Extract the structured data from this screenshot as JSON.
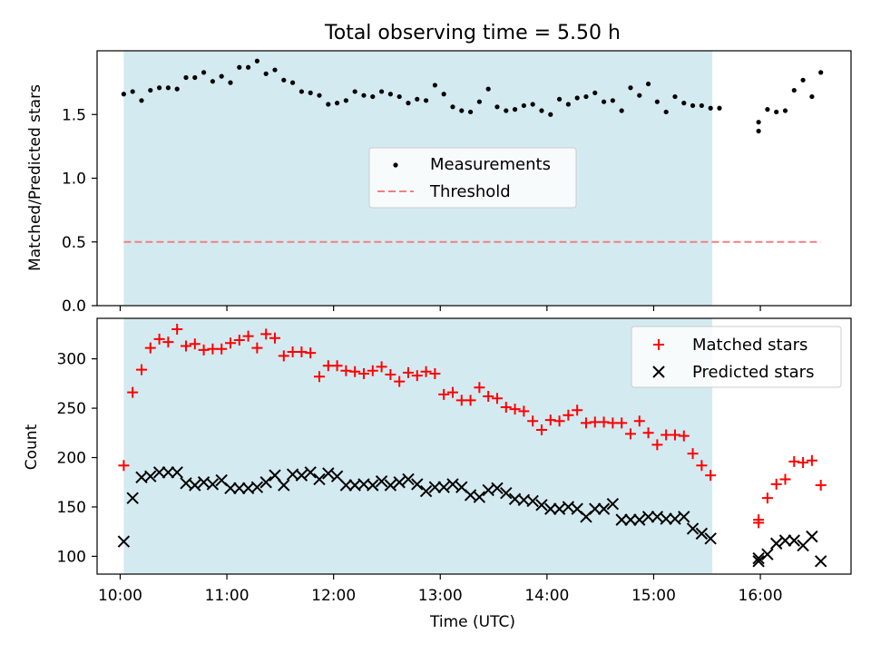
{
  "title": "Total observing time = 5.50 h",
  "x_tick_labels": [
    "10:00",
    "11:00",
    "12:00",
    "13:00",
    "14:00",
    "15:00",
    "16:00"
  ],
  "x_axis_label": "Time (UTC)",
  "chart_data": [
    {
      "type": "scatter",
      "ylabel": "Matched/Predicted stars",
      "xlim": [
        "09:47",
        "16:51"
      ],
      "ylim": [
        0,
        2.0
      ],
      "y_ticks": [
        "0.0",
        "0.5",
        "1.0",
        "1.5"
      ],
      "grid": false,
      "legend": "center",
      "shaded_span": {
        "start": "10:02",
        "end": "15:33",
        "color": "#d4eaf1"
      },
      "series": [
        {
          "name": "Measurements",
          "marker": "dot",
          "color": "#000000",
          "points": [
            [
              "10:02",
              1.66
            ],
            [
              "10:07",
              1.68
            ],
            [
              "10:12",
              1.61
            ],
            [
              "10:17",
              1.69
            ],
            [
              "10:22",
              1.71
            ],
            [
              "10:27",
              1.71
            ],
            [
              "10:32",
              1.7
            ],
            [
              "10:37",
              1.79
            ],
            [
              "10:42",
              1.79
            ],
            [
              "10:47",
              1.83
            ],
            [
              "10:52",
              1.76
            ],
            [
              "10:57",
              1.8
            ],
            [
              "11:02",
              1.75
            ],
            [
              "11:07",
              1.87
            ],
            [
              "11:12",
              1.87
            ],
            [
              "11:17",
              1.92
            ],
            [
              "11:22",
              1.82
            ],
            [
              "11:27",
              1.85
            ],
            [
              "11:32",
              1.77
            ],
            [
              "11:37",
              1.75
            ],
            [
              "11:42",
              1.68
            ],
            [
              "11:47",
              1.67
            ],
            [
              "11:52",
              1.65
            ],
            [
              "11:57",
              1.58
            ],
            [
              "12:02",
              1.59
            ],
            [
              "12:07",
              1.61
            ],
            [
              "12:12",
              1.68
            ],
            [
              "12:17",
              1.65
            ],
            [
              "12:22",
              1.64
            ],
            [
              "12:27",
              1.68
            ],
            [
              "12:32",
              1.66
            ],
            [
              "12:37",
              1.64
            ],
            [
              "12:42",
              1.59
            ],
            [
              "12:47",
              1.62
            ],
            [
              "12:52",
              1.61
            ],
            [
              "12:57",
              1.73
            ],
            [
              "13:02",
              1.66
            ],
            [
              "13:07",
              1.56
            ],
            [
              "13:12",
              1.53
            ],
            [
              "13:17",
              1.52
            ],
            [
              "13:22",
              1.6
            ],
            [
              "13:27",
              1.7
            ],
            [
              "13:32",
              1.56
            ],
            [
              "13:37",
              1.53
            ],
            [
              "13:42",
              1.54
            ],
            [
              "13:47",
              1.57
            ],
            [
              "13:52",
              1.58
            ],
            [
              "13:57",
              1.53
            ],
            [
              "14:02",
              1.5
            ],
            [
              "14:07",
              1.62
            ],
            [
              "14:12",
              1.58
            ],
            [
              "14:17",
              1.63
            ],
            [
              "14:22",
              1.64
            ],
            [
              "14:27",
              1.67
            ],
            [
              "14:32",
              1.6
            ],
            [
              "14:37",
              1.61
            ],
            [
              "14:42",
              1.53
            ],
            [
              "14:47",
              1.71
            ],
            [
              "14:52",
              1.65
            ],
            [
              "14:57",
              1.74
            ],
            [
              "15:02",
              1.6
            ],
            [
              "15:07",
              1.52
            ],
            [
              "15:12",
              1.64
            ],
            [
              "15:17",
              1.59
            ],
            [
              "15:22",
              1.57
            ],
            [
              "15:27",
              1.57
            ],
            [
              "15:32",
              1.55
            ],
            [
              "15:37",
              1.55
            ],
            [
              "15:59",
              1.44
            ],
            [
              "15:59",
              1.37
            ],
            [
              "16:04",
              1.54
            ],
            [
              "16:09",
              1.52
            ],
            [
              "16:14",
              1.53
            ],
            [
              "16:19",
              1.69
            ],
            [
              "16:24",
              1.77
            ],
            [
              "16:29",
              1.64
            ],
            [
              "16:34",
              1.83
            ]
          ]
        },
        {
          "name": "Threshold",
          "line_style": "dashed",
          "color": "#f08080",
          "points": [
            [
              "10:02",
              0.5
            ],
            [
              "16:34",
              0.5
            ]
          ]
        }
      ]
    },
    {
      "type": "scatter",
      "xlabel": "Time (UTC)",
      "ylabel": "Count",
      "xlim": [
        "09:47",
        "16:51"
      ],
      "ylim": [
        82,
        341
      ],
      "y_ticks": [
        "100",
        "150",
        "200",
        "250",
        "300"
      ],
      "grid": false,
      "legend": "top-right",
      "shaded_span": {
        "start": "10:02",
        "end": "15:33",
        "color": "#d4eaf1"
      },
      "series": [
        {
          "name": "Matched stars",
          "marker": "plus",
          "color": "#ff0000",
          "points": [
            [
              "10:02",
              192
            ],
            [
              "10:07",
              266
            ],
            [
              "10:12",
              289
            ],
            [
              "10:17",
              311
            ],
            [
              "10:22",
              320
            ],
            [
              "10:27",
              317
            ],
            [
              "10:32",
              330
            ],
            [
              "10:37",
              313
            ],
            [
              "10:42",
              315
            ],
            [
              "10:47",
              309
            ],
            [
              "10:52",
              310
            ],
            [
              "10:57",
              310
            ],
            [
              "11:02",
              316
            ],
            [
              "11:07",
              319
            ],
            [
              "11:12",
              323
            ],
            [
              "11:17",
              311
            ],
            [
              "11:22",
              325
            ],
            [
              "11:27",
              321
            ],
            [
              "11:32",
              303
            ],
            [
              "11:37",
              307
            ],
            [
              "11:42",
              307
            ],
            [
              "11:47",
              306
            ],
            [
              "11:52",
              282
            ],
            [
              "11:57",
              293
            ],
            [
              "12:02",
              293
            ],
            [
              "12:07",
              288
            ],
            [
              "12:12",
              287
            ],
            [
              "12:17",
              285
            ],
            [
              "12:22",
              288
            ],
            [
              "12:27",
              292
            ],
            [
              "12:32",
              284
            ],
            [
              "12:37",
              277
            ],
            [
              "12:42",
              286
            ],
            [
              "12:47",
              283
            ],
            [
              "12:52",
              287
            ],
            [
              "12:57",
              285
            ],
            [
              "13:02",
              264
            ],
            [
              "13:07",
              266
            ],
            [
              "13:12",
              258
            ],
            [
              "13:17",
              258
            ],
            [
              "13:22",
              271
            ],
            [
              "13:27",
              262
            ],
            [
              "13:32",
              260
            ],
            [
              "13:37",
              251
            ],
            [
              "13:42",
              249
            ],
            [
              "13:47",
              247
            ],
            [
              "13:52",
              237
            ],
            [
              "13:57",
              228
            ],
            [
              "14:02",
              238
            ],
            [
              "14:07",
              237
            ],
            [
              "14:12",
              243
            ],
            [
              "14:17",
              248
            ],
            [
              "14:22",
              235
            ],
            [
              "14:27",
              236
            ],
            [
              "14:32",
              236
            ],
            [
              "14:37",
              235
            ],
            [
              "14:42",
              235
            ],
            [
              "14:47",
              224
            ],
            [
              "14:52",
              237
            ],
            [
              "14:57",
              225
            ],
            [
              "15:02",
              213
            ],
            [
              "15:07",
              223
            ],
            [
              "15:12",
              223
            ],
            [
              "15:17",
              222
            ],
            [
              "15:22",
              204
            ],
            [
              "15:27",
              192
            ],
            [
              "15:32",
              182
            ],
            [
              "15:59",
              137
            ],
            [
              "15:59",
              134
            ],
            [
              "16:04",
              159
            ],
            [
              "16:09",
              173
            ],
            [
              "16:14",
              178
            ],
            [
              "16:19",
              196
            ],
            [
              "16:24",
              195
            ],
            [
              "16:29",
              197
            ],
            [
              "16:34",
              172
            ]
          ]
        },
        {
          "name": "Predicted stars",
          "marker": "x",
          "color": "#000000",
          "points": [
            [
              "10:02",
              115
            ],
            [
              "10:07",
              159
            ],
            [
              "10:12",
              180
            ],
            [
              "10:17",
              181
            ],
            [
              "10:22",
              185
            ],
            [
              "10:27",
              185
            ],
            [
              "10:32",
              185
            ],
            [
              "10:37",
              174
            ],
            [
              "10:42",
              172
            ],
            [
              "10:47",
              175
            ],
            [
              "10:52",
              173
            ],
            [
              "10:57",
              177
            ],
            [
              "11:02",
              169
            ],
            [
              "11:07",
              169
            ],
            [
              "11:12",
              169
            ],
            [
              "11:17",
              170
            ],
            [
              "11:22",
              175
            ],
            [
              "11:27",
              182
            ],
            [
              "11:32",
              172
            ],
            [
              "11:37",
              183
            ],
            [
              "11:42",
              182
            ],
            [
              "11:47",
              185
            ],
            [
              "11:52",
              178
            ],
            [
              "11:57",
              184
            ],
            [
              "12:02",
              181
            ],
            [
              "12:07",
              172
            ],
            [
              "12:12",
              172
            ],
            [
              "12:17",
              173
            ],
            [
              "12:22",
              172
            ],
            [
              "12:27",
              176
            ],
            [
              "12:32",
              172
            ],
            [
              "12:37",
              175
            ],
            [
              "12:42",
              178
            ],
            [
              "12:47",
              173
            ],
            [
              "12:52",
              166
            ],
            [
              "12:57",
              170
            ],
            [
              "13:02",
              170
            ],
            [
              "13:07",
              173
            ],
            [
              "13:12",
              170
            ],
            [
              "13:17",
              162
            ],
            [
              "13:22",
              160
            ],
            [
              "13:27",
              167
            ],
            [
              "13:32",
              169
            ],
            [
              "13:37",
              164
            ],
            [
              "13:42",
              158
            ],
            [
              "13:47",
              157
            ],
            [
              "13:52",
              156
            ],
            [
              "13:57",
              152
            ],
            [
              "14:02",
              148
            ],
            [
              "14:07",
              148
            ],
            [
              "14:12",
              150
            ],
            [
              "14:17",
              148
            ],
            [
              "14:22",
              140
            ],
            [
              "14:27",
              148
            ],
            [
              "14:32",
              148
            ],
            [
              "14:37",
              153
            ],
            [
              "14:42",
              137
            ],
            [
              "14:47",
              137
            ],
            [
              "14:52",
              137
            ],
            [
              "14:57",
              140
            ],
            [
              "15:02",
              140
            ],
            [
              "15:07",
              138
            ],
            [
              "15:12",
              138
            ],
            [
              "15:17",
              140
            ],
            [
              "15:22",
              128
            ],
            [
              "15:27",
              123
            ],
            [
              "15:32",
              118
            ],
            [
              "15:59",
              95
            ],
            [
              "15:59",
              98
            ],
            [
              "16:04",
              102
            ],
            [
              "16:09",
              113
            ],
            [
              "16:14",
              116
            ],
            [
              "16:19",
              116
            ],
            [
              "16:24",
              111
            ],
            [
              "16:29",
              120
            ],
            [
              "16:34",
              95
            ]
          ]
        }
      ]
    }
  ]
}
